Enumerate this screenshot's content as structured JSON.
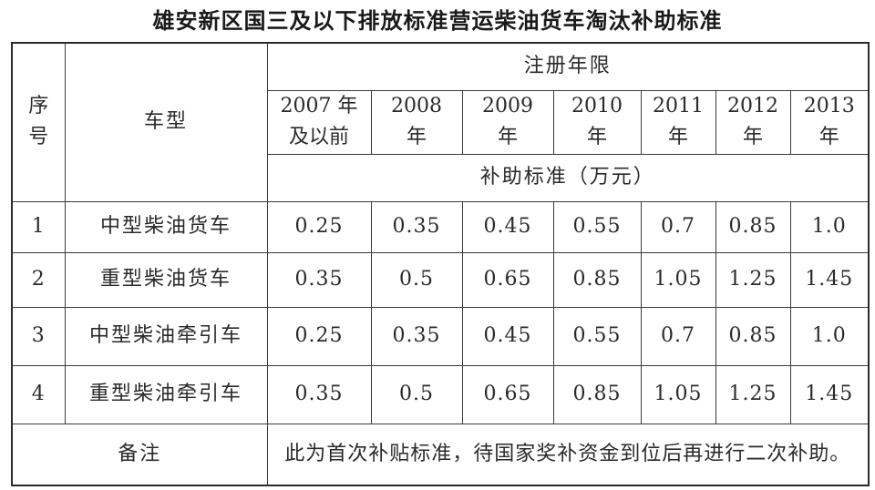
{
  "title": "雄安新区国三及以下排放标准营运柴油货车淘汰补助标准",
  "header": {
    "seq_label_line1": "序",
    "seq_label_line2": "号",
    "type_label": "车型",
    "registration_label": "注册年限",
    "subsidy_label": "补助标准（万元）",
    "years": [
      {
        "line1": "2007 年",
        "line2": "及以前"
      },
      {
        "line1": "2008",
        "line2": "年"
      },
      {
        "line1": "2009",
        "line2": "年"
      },
      {
        "line1": "2010",
        "line2": "年"
      },
      {
        "line1": "2011",
        "line2": "年"
      },
      {
        "line1": "2012",
        "line2": "年"
      },
      {
        "line1": "2013",
        "line2": "年"
      }
    ]
  },
  "rows": [
    {
      "seq": "1",
      "type": "中型柴油货车",
      "values": [
        "0.25",
        "0.35",
        "0.45",
        "0.55",
        "0.7",
        "0.85",
        "1.0"
      ]
    },
    {
      "seq": "2",
      "type": "重型柴油货车",
      "values": [
        "0.35",
        "0.5",
        "0.65",
        "0.85",
        "1.05",
        "1.25",
        "1.45"
      ]
    },
    {
      "seq": "3",
      "type": "中型柴油牵引车",
      "values": [
        "0.25",
        "0.35",
        "0.45",
        "0.55",
        "0.7",
        "0.85",
        "1.0"
      ]
    },
    {
      "seq": "4",
      "type": "重型柴油牵引车",
      "values": [
        "0.35",
        "0.5",
        "0.65",
        "0.85",
        "1.05",
        "1.25",
        "1.45"
      ]
    }
  ],
  "remark": {
    "label": "备注",
    "text": "此为首次补贴标准，待国家奖补资金到位后再进行二次补助。"
  }
}
